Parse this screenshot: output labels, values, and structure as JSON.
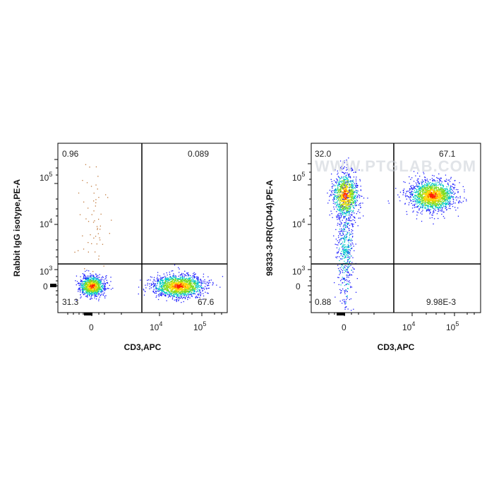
{
  "chart_data": [
    {
      "type": "scatter",
      "xlabel": "CD3,APC",
      "ylabel": "Rabbit IgG isotype,PE-A",
      "x_scale": "biexponential",
      "y_scale": "biexponential",
      "x_ticks": [
        "0",
        "10^4",
        "10^5"
      ],
      "y_ticks": [
        "0",
        "10^3",
        "10^4",
        "10^5"
      ],
      "gate": {
        "x": 5500,
        "y": 1300
      },
      "quadrants": {
        "top_left": "0.96",
        "top_right": "0.089",
        "bottom_left": "31.3",
        "bottom_right": "67.6"
      },
      "populations": [
        {
          "name": "",
          "x": 0,
          "y": 0,
          "share": 31.3
        },
        {
          "name": "",
          "x": 30000,
          "y": 0,
          "share": 67.6
        },
        {
          "name": "",
          "x": 0,
          "y": 10000,
          "share": 0.96
        }
      ]
    },
    {
      "type": "scatter",
      "xlabel": "CD3,APC",
      "ylabel": "98333-3-RR(CD44),PE-A",
      "x_scale": "biexponential",
      "y_scale": "biexponential",
      "x_ticks": [
        "0",
        "10^4",
        "10^5"
      ],
      "y_ticks": [
        "0",
        "10^3",
        "10^4",
        "10^5"
      ],
      "gate": {
        "x": 5500,
        "y": 1300
      },
      "quadrants": {
        "top_left": "32.0",
        "top_right": "67.1",
        "bottom_left": "0.88",
        "bottom_right": "9.98E-3"
      },
      "populations": [
        {
          "name": "",
          "x": 0,
          "y": 50000,
          "share": 32.0
        },
        {
          "name": "",
          "x": 30000,
          "y": 50000,
          "share": 67.1
        },
        {
          "name": "",
          "x": 0,
          "y": 3000,
          "share": 0.88
        }
      ]
    }
  ],
  "watermark": "WWW.PTGLAB.COM",
  "colors": {
    "low": "#1a1aff",
    "mid": "#00c8c8",
    "midhigh": "#7ddc1f",
    "high": "#ffd400",
    "peak": "#ff2200"
  }
}
